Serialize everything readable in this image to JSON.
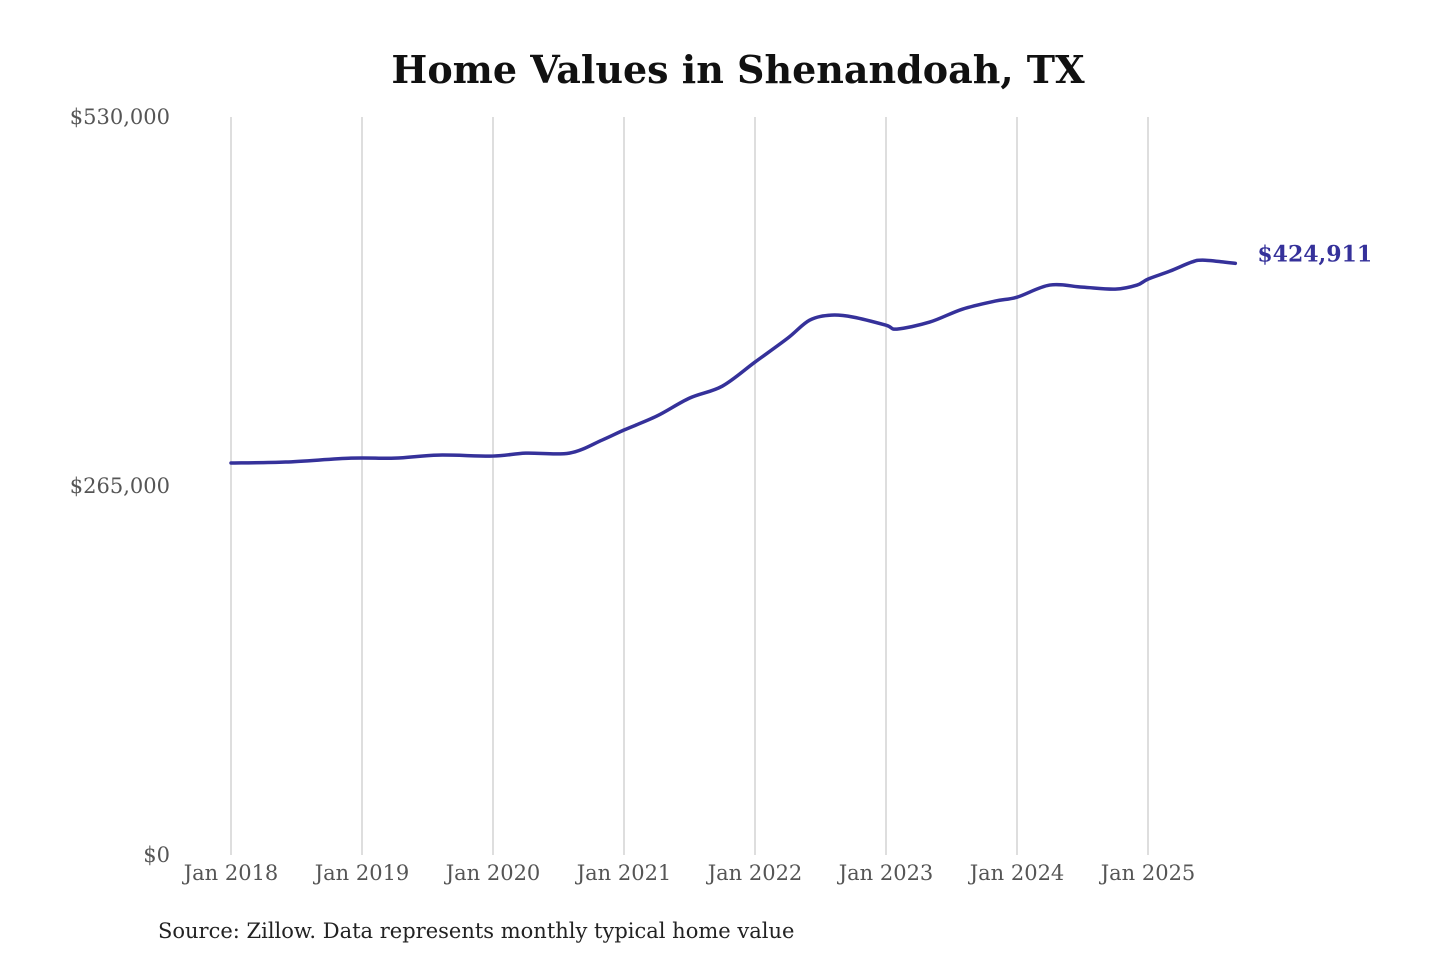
{
  "chart_data": {
    "type": "line",
    "title": "Home Values in Shenandoah, TX",
    "xlabel": "",
    "ylabel": "",
    "source": "Source: Zillow. Data represents monthly typical home value",
    "ylim": [
      0,
      530000
    ],
    "y_ticks": [
      0,
      265000,
      530000
    ],
    "y_tick_labels": [
      "$0",
      "$265,000",
      "$530,000"
    ],
    "x_ticks": [
      "2018-01",
      "2019-01",
      "2020-01",
      "2021-01",
      "2022-01",
      "2023-01",
      "2024-01",
      "2025-01"
    ],
    "x_tick_labels": [
      "Jan 2018",
      "Jan 2019",
      "Jan 2020",
      "Jan 2021",
      "Jan 2022",
      "Jan 2023",
      "Jan 2024",
      "Jan 2025"
    ],
    "grid": "vertical",
    "legend": "none",
    "line_color": "#35319a",
    "end_label": "$424,911",
    "series": [
      {
        "x": [
          "2018-01",
          "2018-06",
          "2018-12",
          "2019-04",
          "2019-08",
          "2020-01",
          "2020-04",
          "2020-08",
          "2020-11",
          "2021-01",
          "2021-04",
          "2021-07",
          "2021-10",
          "2022-01",
          "2022-04",
          "2022-06",
          "2022-08",
          "2022-10",
          "2023-01",
          "2023-02",
          "2023-05",
          "2023-08",
          "2023-11",
          "2024-01",
          "2024-04",
          "2024-07",
          "2024-10",
          "2024-12",
          "2025-01",
          "2025-03",
          "2025-05",
          "2025-06",
          "2025-08",
          "2025-09"
        ],
        "values": [
          281500,
          282200,
          285000,
          285000,
          287200,
          286500,
          288600,
          288600,
          298000,
          305200,
          315200,
          328100,
          336700,
          354000,
          371200,
          384100,
          387700,
          386300,
          380500,
          377700,
          382700,
          392000,
          397800,
          400600,
          409300,
          407800,
          406400,
          409300,
          413600,
          419300,
          425800,
          427200,
          425800,
          424911
        ]
      }
    ]
  }
}
